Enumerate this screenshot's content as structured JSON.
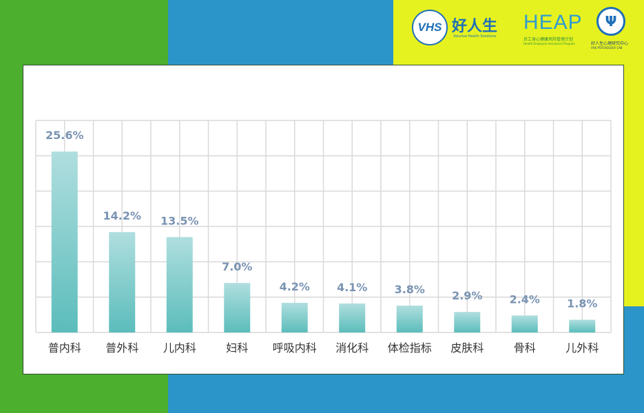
{
  "colors": {
    "bar_top": "#b0dedf",
    "bar_bottom": "#5bbdbb",
    "label": "#7a93b3",
    "grid": "#d9d9d9",
    "category": "#333333"
  },
  "logos": {
    "vhs": {
      "mark": "VHS",
      "name": "好人生",
      "tagline": "Valurise Health Solutions"
    },
    "heap": {
      "mark": "HEAP",
      "name": "员工身心健康风险管理计划",
      "tagline": "Health Employee Assistance Program"
    },
    "lab": {
      "mark": "Ψ",
      "name": "好人生心理研究中心",
      "tagline": "VHS PSYCHOLOGY LAB"
    }
  },
  "chart_data": {
    "type": "bar",
    "categories": [
      "普内科",
      "普外科",
      "儿内科",
      "妇科",
      "呼吸内科",
      "消化科",
      "体检指标",
      "皮肤科",
      "骨科",
      "儿外科"
    ],
    "values": [
      25.6,
      14.2,
      13.5,
      7.0,
      4.2,
      4.1,
      3.8,
      2.9,
      2.4,
      1.8
    ],
    "data_labels": [
      "25.6%",
      "14.2%",
      "13.5%",
      "7.0%",
      "4.2%",
      "4.1%",
      "3.8%",
      "2.9%",
      "2.4%",
      "1.8%"
    ],
    "ylim": [
      0,
      30
    ],
    "grid": true
  }
}
